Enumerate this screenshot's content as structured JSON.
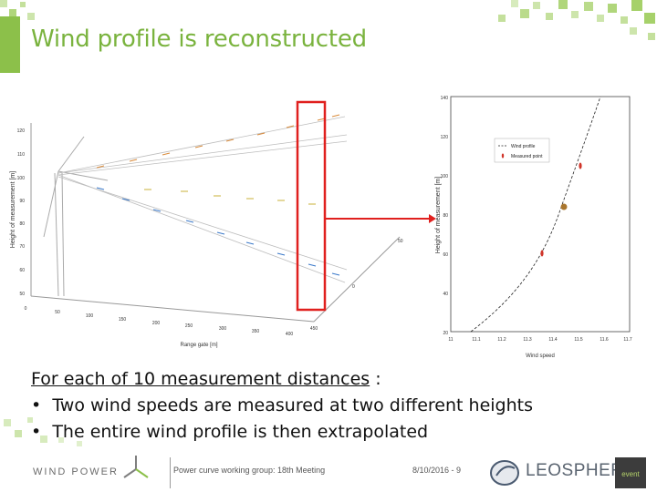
{
  "slide": {
    "title": "Wind profile is reconstructed",
    "body": {
      "heading": "For each of 10 measurement distances",
      "heading_suffix": " :",
      "bullets": [
        "Two wind speeds are measured at two different heights",
        "The entire wind profile is then extrapolated"
      ],
      "bullet_glyph": "•"
    }
  },
  "left_figure": {
    "y_axis_label": "Height of measurement [m]",
    "x_axis_label": "Range gate [m]",
    "y_ticks": [
      "120",
      "110",
      "100",
      "90",
      "80",
      "70",
      "60",
      "50"
    ],
    "x_ticks": [
      "0",
      "50",
      "100",
      "150",
      "200",
      "250",
      "300",
      "350",
      "400",
      "450"
    ],
    "depth_ticks": [
      "50",
      "0"
    ]
  },
  "right_figure": {
    "y_axis_label": "Height of measurement [m]",
    "x_axis_label": "Wind speed",
    "y_ticks": [
      "140",
      "120",
      "100",
      "80",
      "60",
      "40",
      "20"
    ],
    "x_ticks": [
      "11",
      "11.1",
      "11.2",
      "11.3",
      "11.4",
      "11.5",
      "11.6",
      "11.7"
    ],
    "legend": [
      "Wind profile",
      "Measured point"
    ]
  },
  "footer": {
    "logo_text": "WIND POWER",
    "meeting": "Power curve working group: 18th Meeting",
    "date_page": "8/10/2016 - 9",
    "brand": "LEOSPHERE",
    "partner": "event"
  },
  "colors": {
    "accent_green": "#7ab33e",
    "highlight_red": "#e0201e",
    "arrow_orange": "#d98a3a",
    "arrow_blue": "#3a78c9",
    "arrow_yellow": "#c9b13a"
  }
}
